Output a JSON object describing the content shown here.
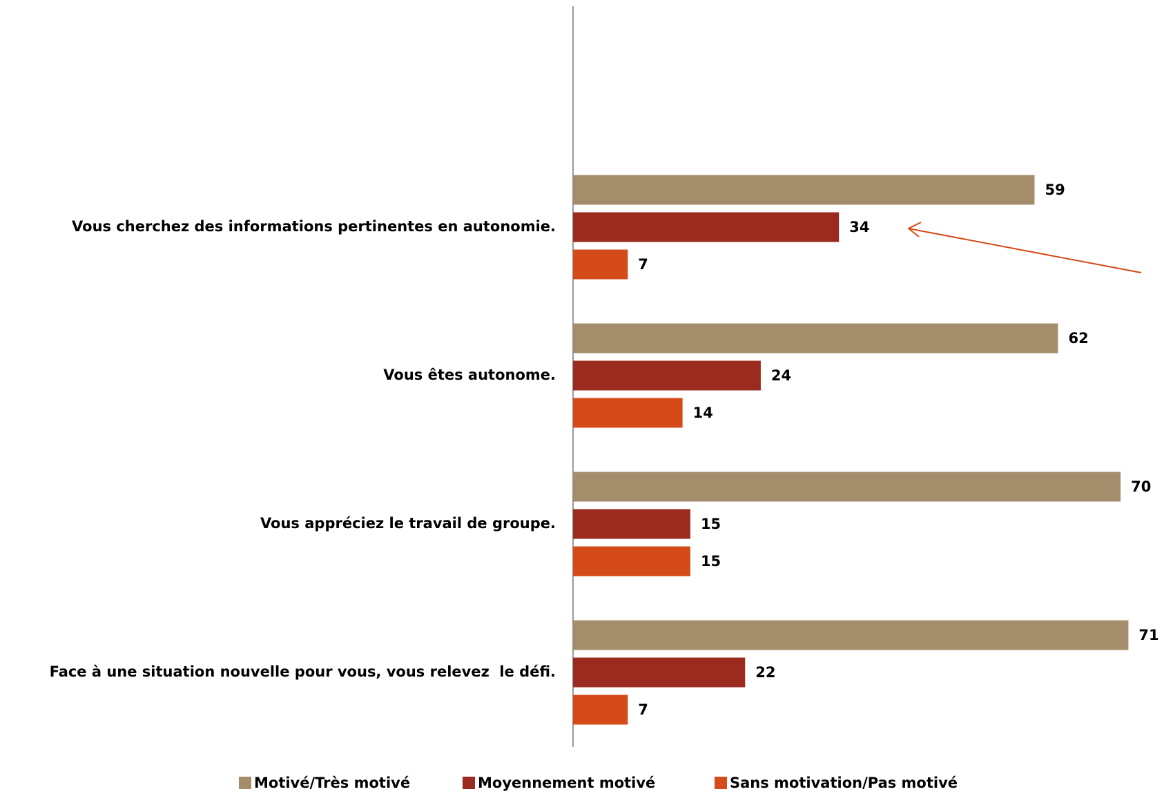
{
  "chart_data": {
    "type": "bar",
    "orientation": "horizontal",
    "categories": [
      "Vous cherchez des informations pertinentes en autonomie.",
      "Vous êtes autonome.",
      "Vous appréciez le travail de groupe.",
      "Face à une situation nouvelle pour vous, vous relevez  le défi."
    ],
    "series": [
      {
        "name": "Motivé/Très motivé",
        "color": "#a38d6b",
        "values": [
          59,
          62,
          70,
          71
        ]
      },
      {
        "name": "Moyennement motivé",
        "color": "#9c2b1f",
        "values": [
          34,
          24,
          15,
          22
        ]
      },
      {
        "name": "Sans motivation/Pas motivé",
        "color": "#d44a18",
        "values": [
          7,
          14,
          15,
          7
        ]
      }
    ],
    "legend": "bottom"
  }
}
